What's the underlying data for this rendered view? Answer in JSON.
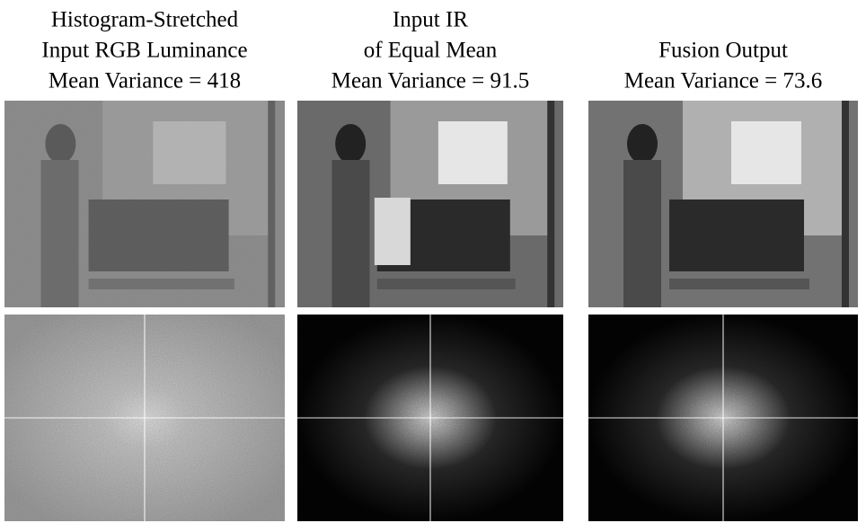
{
  "panels": [
    {
      "title_lines": [
        "Histogram-Stretched",
        "Input RGB Luminance",
        "Mean Variance = 418"
      ]
    },
    {
      "title_lines": [
        "Input IR",
        "of Equal Mean",
        "Mean Variance = 91.5"
      ]
    },
    {
      "title_lines": [
        "Fusion Output",
        "Mean Variance = 73.6"
      ]
    }
  ]
}
